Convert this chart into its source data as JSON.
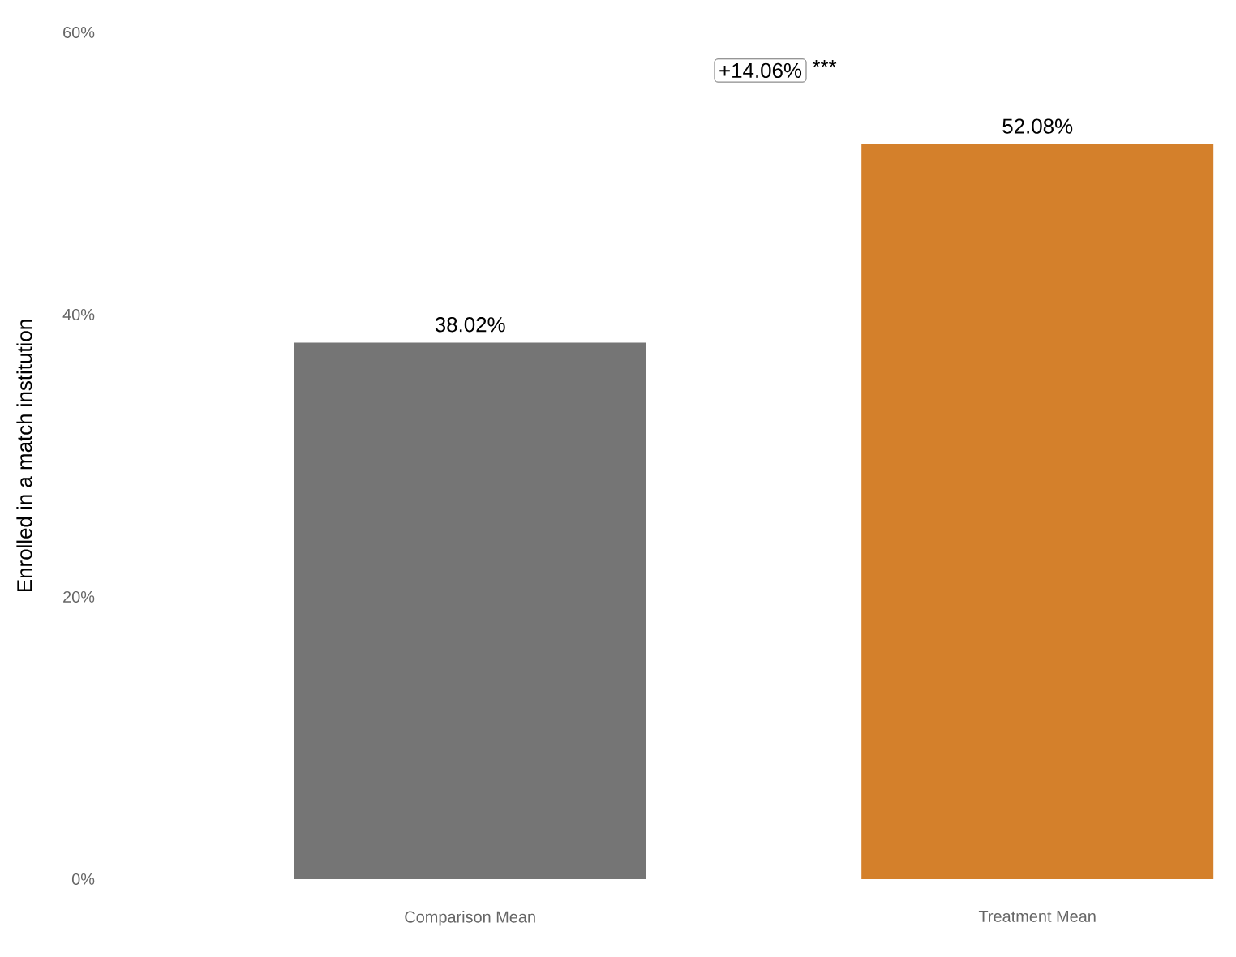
{
  "chart_data": {
    "type": "bar",
    "categories": [
      "Comparison Mean",
      "Treatment Mean"
    ],
    "values": [
      38.02,
      52.08
    ],
    "colors": [
      "#757575",
      "#d4802b"
    ],
    "value_labels": [
      "38.02%",
      "52.08%"
    ],
    "ylabel": "Enrolled in a match institution",
    "ylim": [
      0,
      60
    ],
    "yticks": [
      {
        "value": 0,
        "label": "0%"
      },
      {
        "value": 20,
        "label": "20%"
      },
      {
        "value": 40,
        "label": "40%"
      },
      {
        "value": 60,
        "label": "60%"
      }
    ],
    "annotations": [
      "+14.06%",
      "***"
    ],
    "grid": false
  }
}
